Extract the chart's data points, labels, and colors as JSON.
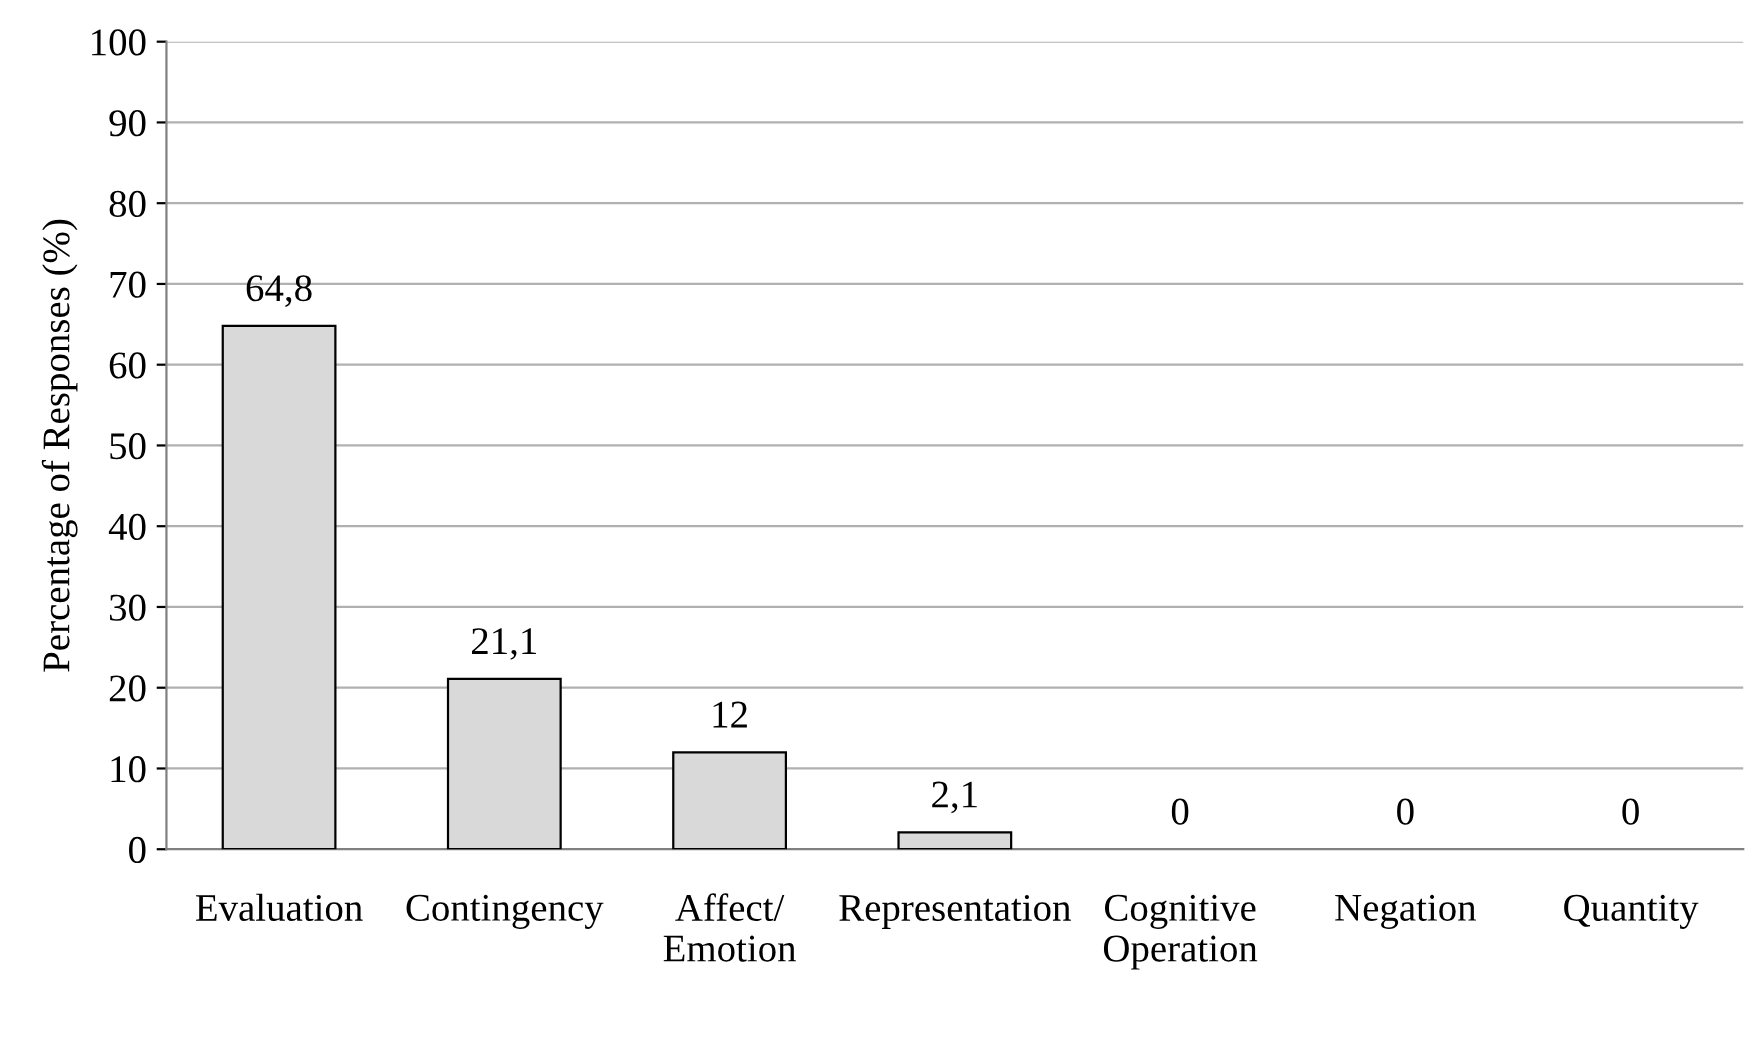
{
  "chart_data": {
    "type": "bar",
    "ylabel": "Percentage of Responses (%)",
    "categories": [
      "Evaluation",
      "Contingency",
      "Affect/\nEmotion",
      "Representation",
      "Cognitive\nOperation",
      "Negation",
      "Quantity"
    ],
    "values": [
      64.8,
      21.1,
      12,
      2.1,
      0,
      0,
      0
    ],
    "value_labels": [
      "64,8",
      "21,1",
      "12",
      "2,1",
      "0",
      "0",
      "0"
    ],
    "color": "#d9d9d9",
    "ylim": [
      0,
      100
    ],
    "yticks": [
      0,
      10,
      20,
      30,
      40,
      50,
      60,
      70,
      80,
      90,
      100
    ],
    "grid": "y"
  }
}
